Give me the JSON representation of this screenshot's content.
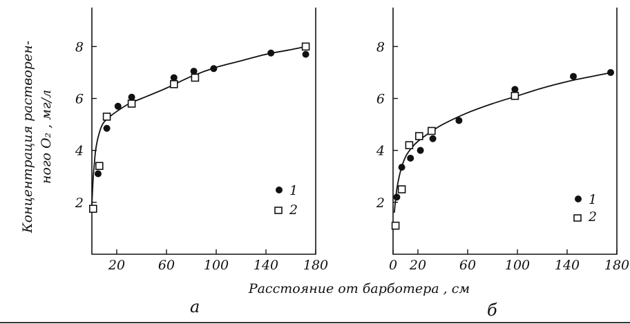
{
  "chart_data": [
    {
      "type": "scatter",
      "panel_label": "а",
      "xlabel": "Расстояние от барботера , см",
      "ylabel_line1": "Концентрация растворен-",
      "ylabel_line2": "ного O₂ , мг/л",
      "xlim": [
        0,
        180
      ],
      "ylim": [
        0,
        9.5
      ],
      "x_ticks": [
        {
          "value": 20,
          "label": "20"
        },
        {
          "value": 60,
          "label": "60"
        },
        {
          "value": 100,
          "label": "100"
        },
        {
          "value": 140,
          "label": "140"
        },
        {
          "value": 180,
          "label": "180"
        }
      ],
      "y_ticks": [
        {
          "value": 2,
          "label": "2"
        },
        {
          "value": 4,
          "label": "4"
        },
        {
          "value": 6,
          "label": "6"
        },
        {
          "value": 8,
          "label": "8"
        }
      ],
      "series": [
        {
          "name": "1",
          "marker": "filled-circle",
          "points": [
            [
              5,
              3.1
            ],
            [
              12,
              4.85
            ],
            [
              21,
              5.7
            ],
            [
              32,
              6.05
            ],
            [
              66,
              6.8
            ],
            [
              82,
              7.05
            ],
            [
              98,
              7.15
            ],
            [
              144,
              7.75
            ],
            [
              172,
              7.7
            ]
          ]
        },
        {
          "name": "2",
          "marker": "open-square",
          "points": [
            [
              1,
              1.75
            ],
            [
              6,
              3.4
            ],
            [
              12,
              5.3
            ],
            [
              32,
              5.8
            ],
            [
              66,
              6.55
            ],
            [
              83,
              6.8
            ],
            [
              172,
              8.0
            ]
          ]
        }
      ],
      "fit_curve": [
        [
          0,
          1.9
        ],
        [
          1,
          2.9
        ],
        [
          2,
          3.5
        ],
        [
          3,
          4.0
        ],
        [
          5,
          4.5
        ],
        [
          8,
          4.95
        ],
        [
          12,
          5.2
        ],
        [
          20,
          5.5
        ],
        [
          30,
          5.8
        ],
        [
          40,
          6.0
        ],
        [
          60,
          6.4
        ],
        [
          80,
          6.85
        ],
        [
          100,
          7.2
        ],
        [
          120,
          7.45
        ],
        [
          140,
          7.7
        ],
        [
          160,
          7.88
        ],
        [
          172,
          8.0
        ]
      ],
      "legend": {
        "position": "lower-right",
        "labels": [
          "1",
          "2"
        ]
      }
    },
    {
      "type": "scatter",
      "panel_label": "б",
      "xlim": [
        0,
        180
      ],
      "ylim": [
        0,
        9.5
      ],
      "x_ticks": [
        {
          "value": 0,
          "label": "0"
        },
        {
          "value": 20,
          "label": "20"
        },
        {
          "value": 60,
          "label": "60"
        },
        {
          "value": 100,
          "label": "100"
        },
        {
          "value": 140,
          "label": "140"
        },
        {
          "value": 180,
          "label": "180"
        }
      ],
      "y_ticks": [
        {
          "value": 2,
          "label": "2"
        },
        {
          "value": 4,
          "label": "4"
        },
        {
          "value": 6,
          "label": "6"
        },
        {
          "value": 8,
          "label": "8"
        }
      ],
      "series": [
        {
          "name": "1",
          "marker": "filled-circle",
          "points": [
            [
              3,
              2.2
            ],
            [
              7,
              3.35
            ],
            [
              14,
              3.7
            ],
            [
              22,
              4.0
            ],
            [
              32,
              4.45
            ],
            [
              53,
              5.15
            ],
            [
              98,
              6.35
            ],
            [
              145,
              6.85
            ],
            [
              175,
              7.0
            ]
          ]
        },
        {
          "name": "2",
          "marker": "open-square",
          "points": [
            [
              2,
              1.1
            ],
            [
              7,
              2.5
            ],
            [
              13,
              4.2
            ],
            [
              21,
              4.55
            ],
            [
              31,
              4.75
            ],
            [
              98,
              6.1
            ]
          ]
        }
      ],
      "fit_curve": [
        [
          1,
          1.6
        ],
        [
          3,
          2.5
        ],
        [
          6,
          3.2
        ],
        [
          10,
          3.75
        ],
        [
          15,
          4.1
        ],
        [
          20,
          4.35
        ],
        [
          30,
          4.7
        ],
        [
          40,
          5.0
        ],
        [
          60,
          5.45
        ],
        [
          80,
          5.8
        ],
        [
          100,
          6.1
        ],
        [
          120,
          6.4
        ],
        [
          140,
          6.65
        ],
        [
          160,
          6.85
        ],
        [
          176,
          7.0
        ]
      ],
      "legend": {
        "position": "lower-right",
        "labels": [
          "1",
          "2"
        ]
      }
    }
  ]
}
